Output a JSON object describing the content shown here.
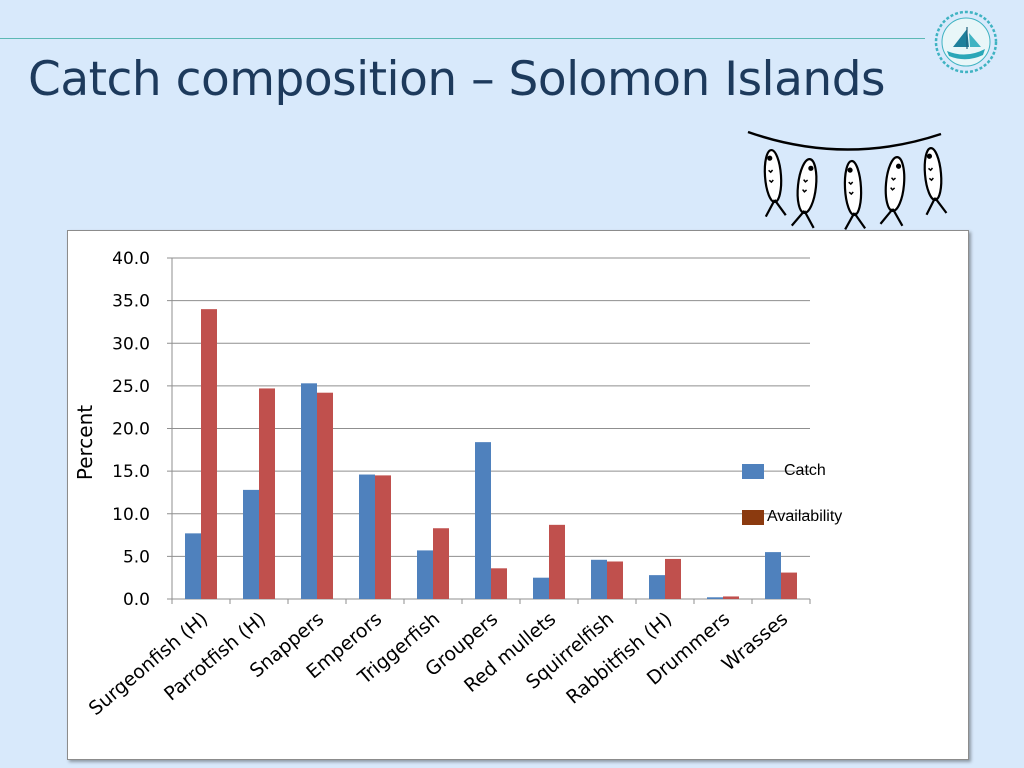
{
  "slide": {
    "title": "Catch composition – Solomon Islands",
    "logo_icon": "spc-fisheries-logo-icon",
    "decoration_icon": "hanging-fish-icon"
  },
  "colors": {
    "background": "#d8e9fb",
    "title": "#1d3a5c",
    "accent_line": "#5cb9b4",
    "catch": "#4f81bd",
    "availability": "#c0504d",
    "availability_legend": "#8b3a0f"
  },
  "chart_data": {
    "type": "bar",
    "title": "",
    "xlabel": "",
    "ylabel": "Percent",
    "ylim": [
      0,
      40
    ],
    "yticks": [
      "0.0",
      "5.0",
      "10.0",
      "15.0",
      "20.0",
      "25.0",
      "30.0",
      "35.0",
      "40.0"
    ],
    "grid": true,
    "legend_position": "right",
    "categories": [
      "Surgeonfish (H)",
      "Parrotfish (H)",
      "Snappers",
      "Emperors",
      "Triggerfish",
      "Groupers",
      "Red mullets",
      "Squirrelfish",
      "Rabbitfish (H)",
      "Drummers",
      "Wrasses"
    ],
    "series": [
      {
        "name": "Catch",
        "values": [
          7.7,
          12.8,
          25.3,
          14.6,
          5.7,
          18.4,
          2.5,
          4.6,
          2.8,
          0.2,
          5.5
        ]
      },
      {
        "name": "Availability",
        "values": [
          34.0,
          24.7,
          24.2,
          14.5,
          8.3,
          3.6,
          8.7,
          4.4,
          4.7,
          0.3,
          3.1
        ]
      }
    ]
  }
}
